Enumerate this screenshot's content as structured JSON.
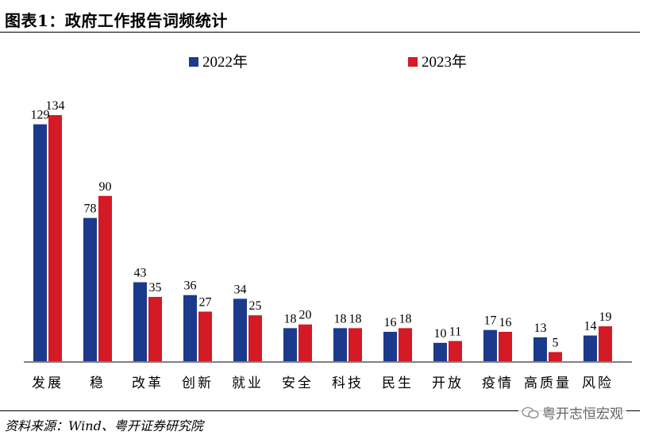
{
  "header": {
    "title": "图表1：政府工作报告词频统计"
  },
  "footer": {
    "source": "资料来源：Wind、粤开证券研究院",
    "watermark": "粤开志恒宏观"
  },
  "colors": {
    "series_2022": "#1b3a8c",
    "series_2023": "#d31a25",
    "axis": "#000000"
  },
  "chart_data": {
    "type": "bar",
    "categories": [
      "发展",
      "稳",
      "改革",
      "创新",
      "就业",
      "安全",
      "科技",
      "民生",
      "开放",
      "疫情",
      "高质量",
      "风险"
    ],
    "series": [
      {
        "name": "2022年",
        "values": [
          129,
          78,
          43,
          36,
          34,
          18,
          18,
          16,
          10,
          17,
          13,
          14
        ]
      },
      {
        "name": "2023年",
        "values": [
          134,
          90,
          35,
          27,
          25,
          20,
          18,
          18,
          11,
          16,
          5,
          19
        ]
      }
    ],
    "ylim": [
      0,
      134
    ],
    "legend_position": "top-center",
    "grid": false
  }
}
